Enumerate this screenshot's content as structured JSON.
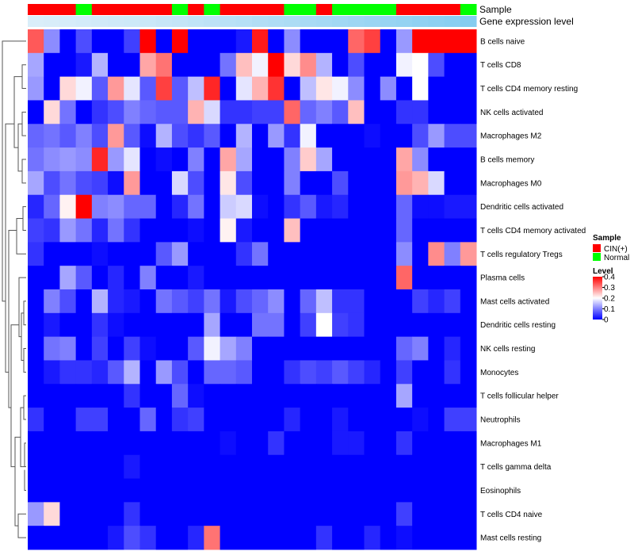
{
  "chart_data": {
    "type": "heatmap",
    "title": "",
    "annotation_labels": {
      "sample": "Sample",
      "gene_expression": "Gene expression level"
    },
    "colors": {
      "cin": "#ff0000",
      "normal": "#00ff00",
      "low": "#0000ff",
      "mid": "#ffffff",
      "high": "#ff0000",
      "dendrogram": "#555555"
    },
    "legend_sample": {
      "title": "Sample",
      "entries": [
        {
          "label": "CIN(+)",
          "color": "#ff0000"
        },
        {
          "label": "Normal",
          "color": "#00ff00"
        }
      ]
    },
    "legend_level": {
      "title": "Level",
      "ticks": [
        "0.4",
        "0.3",
        "0.2",
        "0.1",
        "0"
      ],
      "tick_values": [
        0.4,
        0.3,
        0.2,
        0.1,
        0
      ],
      "range": [
        0,
        0.4
      ]
    },
    "sample_groups": [
      "C",
      "C",
      "C",
      "N",
      "C",
      "C",
      "C",
      "C",
      "C",
      "N",
      "C",
      "N",
      "C",
      "C",
      "C",
      "C",
      "N",
      "N",
      "C",
      "N",
      "N",
      "N",
      "N",
      "C",
      "C",
      "C",
      "C",
      "N"
    ],
    "expression_level": [
      0.05,
      0.07,
      0.09,
      0.11,
      0.13,
      0.15,
      0.17,
      0.19,
      0.22,
      0.25,
      0.28,
      0.31,
      0.34,
      0.37,
      0.4,
      0.43,
      0.46,
      0.49,
      0.52,
      0.55,
      0.58,
      0.61,
      0.64,
      0.67,
      0.7,
      0.73,
      0.76,
      0.8
    ],
    "rows": [
      "B cells naive",
      "T cells CD8",
      "T cells CD4 memory resting",
      "NK cells activated",
      "Macrophages M2",
      "B cells memory",
      "Macrophages M0",
      "Dendritic cells activated",
      "T cells CD4 memory activated",
      "T cells regulatory  Tregs",
      "Plasma cells",
      "Mast cells activated",
      "Dendritic cells resting",
      "NK cells resting",
      "Monocytes",
      "T cells follicular helper",
      "Neutrophils",
      "Macrophages M1",
      "T cells gamma delta",
      "Eosinophils",
      "T cells CD4 naive",
      "Mast cells resting"
    ],
    "values": [
      [
        0.33,
        0.11,
        0,
        0.06,
        0,
        0,
        0.05,
        0.4,
        0,
        0.4,
        0,
        0,
        0,
        0.02,
        0.38,
        0,
        0.11,
        0,
        0,
        0,
        0.32,
        0.35,
        0,
        0.12,
        0.4,
        0.4,
        0.4,
        0.4
      ],
      [
        0.13,
        0,
        0,
        0.02,
        0.14,
        0,
        0,
        0.27,
        0.31,
        0,
        0,
        0,
        0.09,
        0.25,
        0.19,
        0.4,
        0.23,
        0.29,
        0.14,
        0,
        0.06,
        0,
        0,
        0.19,
        0.2,
        0.06,
        0,
        0
      ],
      [
        0.12,
        0,
        0.23,
        0.19,
        0.07,
        0.28,
        0.18,
        0.07,
        0.35,
        0.07,
        0.15,
        0.37,
        0,
        0.18,
        0.26,
        0.36,
        0,
        0.15,
        0.22,
        0.19,
        0.11,
        0,
        0.11,
        0,
        0.2,
        0,
        0,
        0
      ],
      [
        0,
        0.23,
        0.09,
        0,
        0.04,
        0.06,
        0.1,
        0.08,
        0.07,
        0.07,
        0.26,
        0.17,
        0.04,
        0.04,
        0.05,
        0.05,
        0.32,
        0.08,
        0.1,
        0.07,
        0.25,
        0,
        0,
        0.04,
        0.04,
        0,
        0,
        0
      ],
      [
        0.08,
        0.09,
        0.07,
        0.1,
        0.06,
        0.28,
        0.07,
        0.01,
        0.14,
        0.06,
        0.04,
        0.07,
        0,
        0.14,
        0,
        0.12,
        0.04,
        0.19,
        0,
        0,
        0,
        0.01,
        0,
        0,
        0.06,
        0.12,
        0.06,
        0.06
      ],
      [
        0.09,
        0.11,
        0.12,
        0.11,
        0.37,
        0.12,
        0.18,
        0,
        0.01,
        0,
        0.1,
        0,
        0.27,
        0.13,
        0,
        0,
        0.1,
        0.24,
        0.13,
        0,
        0,
        0,
        0,
        0.27,
        0.11,
        0,
        0,
        0
      ],
      [
        0.13,
        0.06,
        0.09,
        0.06,
        0.05,
        0.01,
        0.28,
        0,
        0,
        0.17,
        0.06,
        0,
        0.22,
        0.06,
        0,
        0,
        0.1,
        0,
        0,
        0.06,
        0,
        0,
        0,
        0.28,
        0.26,
        0.17,
        0,
        0
      ],
      [
        0.03,
        0.08,
        0.21,
        0.4,
        0.1,
        0.11,
        0.08,
        0.08,
        0,
        0.03,
        0.09,
        0,
        0.16,
        0.17,
        0.01,
        0,
        0.04,
        0.07,
        0.02,
        0.03,
        0,
        0,
        0,
        0.08,
        0.01,
        0.01,
        0.02,
        0.02
      ],
      [
        0.05,
        0.04,
        0.12,
        0.09,
        0.03,
        0.09,
        0.04,
        0,
        0,
        0,
        0.01,
        0,
        0.21,
        0.02,
        0,
        0,
        0.25,
        0,
        0,
        0,
        0,
        0,
        0,
        0.08,
        0,
        0,
        0,
        0
      ],
      [
        0.04,
        0,
        0,
        0,
        0.01,
        0,
        0,
        0,
        0.07,
        0.12,
        0,
        0,
        0,
        0.04,
        0.09,
        0,
        0,
        0,
        0,
        0,
        0,
        0,
        0,
        0.11,
        0,
        0.29,
        0.1,
        0.28
      ],
      [
        0,
        0,
        0.13,
        0.07,
        0,
        0.03,
        0,
        0.1,
        0,
        0,
        0.02,
        0,
        0,
        0,
        0,
        0,
        0,
        0,
        0,
        0,
        0,
        0,
        0,
        0.32,
        0,
        0,
        0,
        0
      ],
      [
        0,
        0.1,
        0.06,
        0,
        0.14,
        0.03,
        0.02,
        0,
        0.09,
        0.07,
        0.05,
        0.09,
        0.02,
        0.06,
        0.08,
        0.11,
        0,
        0.08,
        0.15,
        0.04,
        0.04,
        0,
        0,
        0,
        0.05,
        0.03,
        0.05,
        0
      ],
      [
        0,
        0.02,
        0,
        0,
        0.04,
        0.01,
        0,
        0,
        0,
        0,
        0,
        0.13,
        0,
        0,
        0.09,
        0.09,
        0,
        0.05,
        0.2,
        0.05,
        0.04,
        0,
        0,
        0,
        0,
        0,
        0,
        0
      ],
      [
        0,
        0.09,
        0.1,
        0,
        0.05,
        0,
        0.05,
        0.01,
        0,
        0,
        0.07,
        0.19,
        0.13,
        0.1,
        0,
        0,
        0,
        0,
        0,
        0,
        0,
        0,
        0,
        0.08,
        0.1,
        0,
        0.03,
        0
      ],
      [
        0,
        0.02,
        0.04,
        0.04,
        0.03,
        0.07,
        0.14,
        0,
        0.12,
        0.06,
        0,
        0.08,
        0.08,
        0.07,
        0,
        0,
        0.04,
        0.06,
        0.05,
        0.07,
        0.05,
        0.03,
        0,
        0.05,
        0,
        0,
        0.04,
        0
      ],
      [
        0,
        0,
        0,
        0,
        0,
        0,
        0.04,
        0,
        0,
        0.08,
        0.01,
        0,
        0,
        0,
        0,
        0,
        0,
        0,
        0,
        0,
        0,
        0,
        0,
        0.13,
        0,
        0,
        0,
        0
      ],
      [
        0.04,
        0,
        0,
        0.05,
        0.05,
        0,
        0,
        0.08,
        0,
        0.04,
        0.05,
        0,
        0,
        0,
        0,
        0,
        0.03,
        0,
        0,
        0.02,
        0,
        0,
        0,
        0,
        0.01,
        0,
        0.05,
        0.05
      ],
      [
        0,
        0,
        0,
        0,
        0,
        0,
        0,
        0,
        0,
        0,
        0,
        0,
        0.01,
        0,
        0,
        0.04,
        0,
        0,
        0,
        0.02,
        0.02,
        0,
        0,
        0.04,
        0,
        0,
        0,
        0
      ],
      [
        0,
        0,
        0,
        0,
        0,
        0,
        0.02,
        0,
        0,
        0,
        0,
        0,
        0,
        0,
        0,
        0,
        0,
        0,
        0,
        0,
        0,
        0,
        0,
        0,
        0,
        0,
        0,
        0
      ],
      [
        0,
        0,
        0,
        0,
        0,
        0,
        0,
        0,
        0,
        0,
        0,
        0,
        0,
        0,
        0,
        0,
        0,
        0,
        0,
        0,
        0,
        0,
        0,
        0,
        0,
        0,
        0,
        0
      ],
      [
        0.12,
        0.23,
        0,
        0,
        0,
        0,
        0.04,
        0,
        0,
        0,
        0,
        0,
        0,
        0,
        0,
        0,
        0,
        0,
        0,
        0,
        0,
        0,
        0,
        0.05,
        0,
        0,
        0,
        0
      ],
      [
        0,
        0,
        0,
        0,
        0,
        0.02,
        0.06,
        0.04,
        0,
        0,
        0.03,
        0.31,
        0,
        0,
        0,
        0,
        0,
        0,
        0.04,
        0,
        0,
        0.03,
        0,
        0.01,
        0,
        0,
        0,
        0
      ]
    ]
  }
}
